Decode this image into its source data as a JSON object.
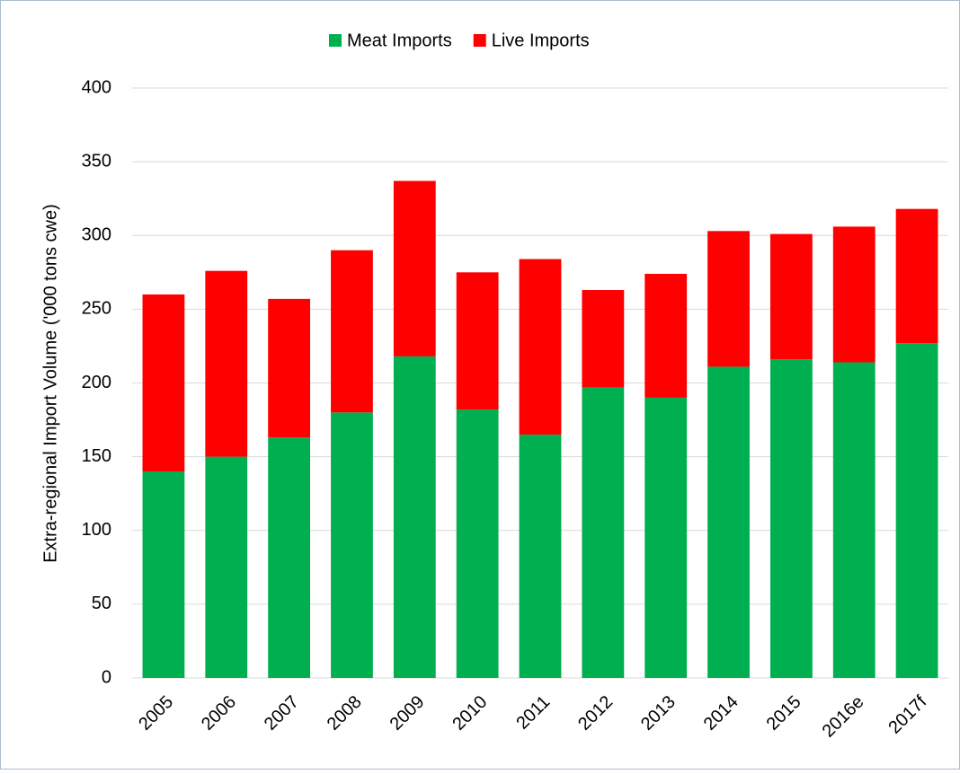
{
  "chart_data": {
    "type": "stacked-bar",
    "y_label": "Extra-regional Import Volume ('000 tons cwe)",
    "categories": [
      "2005",
      "2006",
      "2007",
      "2008",
      "2009",
      "2010",
      "2011",
      "2012",
      "2013",
      "2014",
      "2015",
      "2016e",
      "2017f"
    ],
    "series": [
      {
        "name": "Meat Imports",
        "color": "#00b050",
        "values": [
          140,
          150,
          163,
          180,
          218,
          182,
          165,
          197,
          190,
          211,
          216,
          214,
          227
        ]
      },
      {
        "name": "Live Imports",
        "color": "#ff0000",
        "values": [
          120,
          126,
          94,
          110,
          119,
          93,
          119,
          66,
          84,
          92,
          85,
          92,
          91
        ]
      }
    ],
    "ylim": [
      0,
      400
    ],
    "yticks": [
      0,
      50,
      100,
      150,
      200,
      250,
      300,
      350,
      400
    ],
    "grid": true,
    "legend": "top"
  }
}
